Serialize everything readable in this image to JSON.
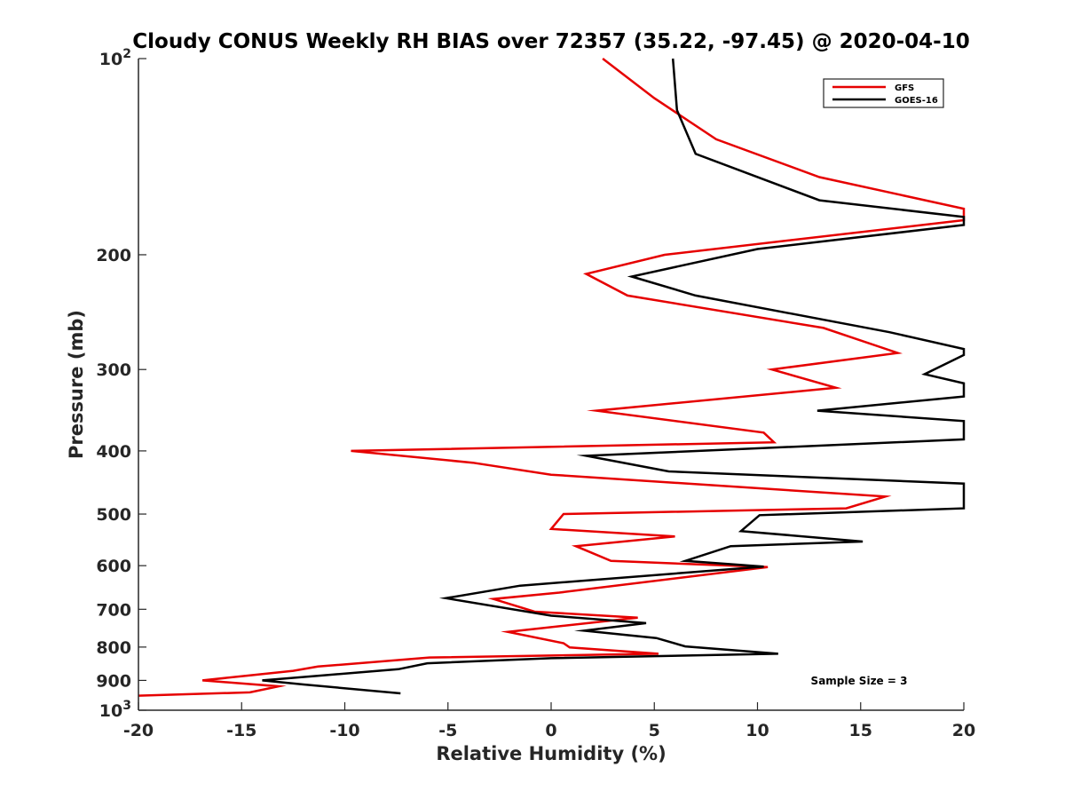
{
  "chart_data": {
    "type": "line",
    "title": "Cloudy CONUS Weekly RH BIAS over 72357 (35.22, -97.45) @ 2020-04-10",
    "xlabel": "Relative Humidity (%)",
    "ylabel": "Pressure (mb)",
    "xlim": [
      -20,
      20
    ],
    "ylim": [
      100,
      1000
    ],
    "y_scale": "log",
    "y_reversed": true,
    "x_ticks": [
      "-20",
      "-15",
      "-10",
      "-5",
      "0",
      "5",
      "10",
      "15",
      "20"
    ],
    "y_ticks": [
      {
        "value": 100,
        "base": "10",
        "exp": "2"
      },
      {
        "value": 200,
        "label": "200"
      },
      {
        "value": 300,
        "label": "300"
      },
      {
        "value": 400,
        "label": "400"
      },
      {
        "value": 500,
        "label": "500"
      },
      {
        "value": 600,
        "label": "600"
      },
      {
        "value": 700,
        "label": "700"
      },
      {
        "value": 800,
        "label": "800"
      },
      {
        "value": 900,
        "label": "900"
      },
      {
        "value": 1000,
        "base": "10",
        "exp": "3"
      }
    ],
    "legend_position": "top-right",
    "annotation": "Sample Size = 3",
    "series": [
      {
        "name": "GFS",
        "color": "#e60000",
        "points": [
          [
            2.5,
            100
          ],
          [
            5,
            115
          ],
          [
            8,
            133
          ],
          [
            13,
            152
          ],
          [
            20,
            170
          ],
          [
            20,
            177
          ],
          [
            5.5,
            200
          ],
          [
            1.7,
            214
          ],
          [
            3.7,
            231
          ],
          [
            13.2,
            259
          ],
          [
            16.8,
            283
          ],
          [
            10.7,
            300
          ],
          [
            13.8,
            320
          ],
          [
            2.2,
            347
          ],
          [
            10.3,
            375
          ],
          [
            10.8,
            388
          ],
          [
            -9.7,
            400
          ],
          [
            -3.8,
            417
          ],
          [
            0,
            435
          ],
          [
            16.2,
            470
          ],
          [
            14.3,
            490
          ],
          [
            0.6,
            500
          ],
          [
            0,
            527
          ],
          [
            6.0,
            541
          ],
          [
            1.2,
            560
          ],
          [
            2.9,
            590
          ],
          [
            10.5,
            603
          ],
          [
            0.4,
            660
          ],
          [
            -2.8,
            675
          ],
          [
            -0.8,
            706
          ],
          [
            4.2,
            721
          ],
          [
            -2.1,
            758
          ],
          [
            0.6,
            789
          ],
          [
            0.9,
            801
          ],
          [
            5.2,
            819
          ],
          [
            -5.9,
            830
          ],
          [
            -11.3,
            857
          ],
          [
            -12.5,
            870
          ],
          [
            -16.9,
            900
          ],
          [
            -13.2,
            919
          ],
          [
            -14.6,
            939
          ],
          [
            -20,
            950
          ]
        ]
      },
      {
        "name": "GOES-16",
        "color": "#000000",
        "points": [
          [
            5.9,
            100
          ],
          [
            6.1,
            120
          ],
          [
            7.0,
            140
          ],
          [
            13.0,
            165
          ],
          [
            20,
            175
          ],
          [
            20,
            180
          ],
          [
            10.0,
            196
          ],
          [
            3.9,
            216
          ],
          [
            7.0,
            231
          ],
          [
            16.4,
            263
          ],
          [
            20,
            279
          ],
          [
            20,
            285
          ],
          [
            18.1,
            305
          ],
          [
            20,
            315
          ],
          [
            20,
            318
          ],
          [
            20,
            330
          ],
          [
            12.9,
            347
          ],
          [
            20,
            360
          ],
          [
            20,
            365
          ],
          [
            20,
            384
          ],
          [
            1.7,
            407
          ],
          [
            5.7,
            430
          ],
          [
            20,
            449
          ],
          [
            20,
            452
          ],
          [
            20,
            490
          ],
          [
            10.1,
            502
          ],
          [
            9.2,
            531
          ],
          [
            15.1,
            551
          ],
          [
            8.7,
            560
          ],
          [
            6.5,
            590
          ],
          [
            10.3,
            602
          ],
          [
            -1.5,
            644
          ],
          [
            -5.1,
            673
          ],
          [
            0,
            716
          ],
          [
            4.6,
            735
          ],
          [
            1.6,
            755
          ],
          [
            5.1,
            775
          ],
          [
            6.5,
            798
          ],
          [
            11.0,
            819
          ],
          [
            0,
            832
          ],
          [
            -6.0,
            847
          ],
          [
            -7.4,
            865
          ],
          [
            -14.0,
            900
          ],
          [
            -12.0,
            913
          ],
          [
            -7.3,
            942
          ]
        ]
      }
    ]
  }
}
